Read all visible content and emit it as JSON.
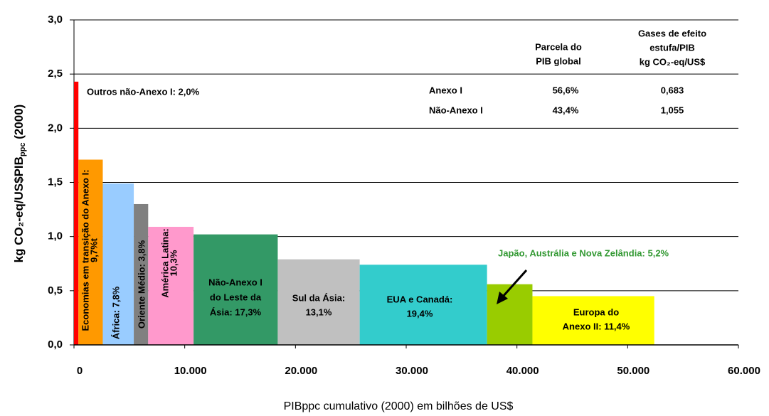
{
  "chart_data": {
    "type": "variable_width_bar",
    "x_label": "PIBppc cumulativo (2000) em bilhões de US$",
    "y_label": [
      "kg CO₂-eq/US$PIB",
      "ppc",
      " (2000)"
    ],
    "categories": [
      [
        "Outros não-Anexo I: 2,0%"
      ],
      [
        "Economias em transição do Anexo I:",
        "9,7%t"
      ],
      [
        "África: 7,8%"
      ],
      [
        "Oriente Médio: 3,8%"
      ],
      [
        "América Latina:",
        "10,3%"
      ],
      [
        "Não-Anexo I",
        "do Leste da",
        "Ásia: 17,3%"
      ],
      [
        "Sul da Ásia:",
        "13,1%"
      ],
      [
        "EUA e Canadá:",
        "19,4%"
      ],
      [
        "Japão, Austrália e Nova Zelândia: 5,2%"
      ],
      [
        "Europa do",
        "Anexo II: 11,4%"
      ]
    ],
    "bins": [
      0,
      400,
      2600,
      5400,
      6700,
      10800,
      18400,
      25800,
      37300,
      41400,
      52400
    ],
    "values": [
      2.43,
      1.71,
      1.49,
      1.3,
      1.09,
      1.02,
      0.79,
      0.74,
      0.56,
      0.45
    ],
    "colors": [
      "#ff0000",
      "#ff9900",
      "#99ccff",
      "#808080",
      "#ff99cc",
      "#339966",
      "#c0c0c0",
      "#33cccc",
      "#99cc00",
      "#ffff00"
    ],
    "xlim": [
      0,
      60000
    ],
    "xticks": [
      0,
      {
        "value": 10000,
        "label": "10.000"
      },
      {
        "value": 20000,
        "label": "20.000"
      },
      {
        "value": 30000,
        "label": "30.000"
      },
      {
        "value": 40000,
        "label": "40.000"
      },
      {
        "value": 50000,
        "label": "50.000"
      },
      {
        "value": 60000,
        "label": "60.000"
      }
    ],
    "ylim": [
      0,
      3
    ],
    "yticks": [
      {
        "value": 0,
        "label": "0,0"
      },
      {
        "value": 0.5,
        "label": "0,5"
      },
      {
        "value": 1,
        "label": "1,0"
      },
      {
        "value": 1.5,
        "label": "1,5"
      },
      {
        "value": 2,
        "label": "2,0"
      },
      {
        "value": 2.5,
        "label": "2,5"
      },
      {
        "value": 3,
        "label": "3,0"
      }
    ],
    "grid": true,
    "table": {
      "headers": [
        [
          "Parcela do",
          "PIB global"
        ],
        [
          "Gases de efeito",
          "estufa/PIB",
          "kg CO₂-eq/US$"
        ]
      ],
      "rows": [
        [
          "Anexo I",
          "56,6%",
          "0,683"
        ],
        [
          "Não-Anexo I",
          "43,4%",
          "1,055"
        ]
      ]
    }
  }
}
